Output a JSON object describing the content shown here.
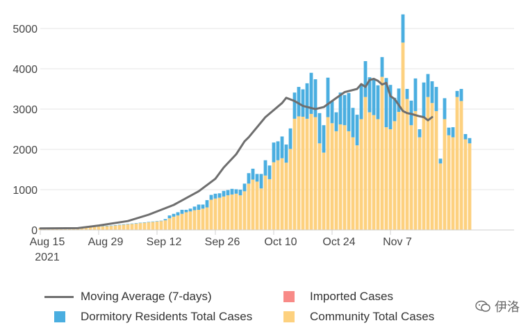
{
  "chart_data": {
    "type": "bar",
    "stacked": true,
    "title": "",
    "xlabel": "",
    "ylabel": "",
    "ylim": [
      0,
      5450
    ],
    "grid": true,
    "y_ticks": [
      "0",
      "1000",
      "2000",
      "3000",
      "4000",
      "5000"
    ],
    "x_ticks": [
      {
        "label": "Aug 15",
        "sublabel": "2021",
        "day": 0
      },
      {
        "label": "Aug 29",
        "day": 14
      },
      {
        "label": "Sep 12",
        "day": 28
      },
      {
        "label": "Sep 26",
        "day": 42
      },
      {
        "label": "Oct 10",
        "day": 56
      },
      {
        "label": "Oct 24",
        "day": 70
      },
      {
        "label": "Nov 7",
        "day": 84
      }
    ],
    "start_date": "2021-08-15",
    "series": [
      {
        "name": "Community Total Cases",
        "color": "#fdd17f",
        "values": [
          45,
          45,
          45,
          45,
          45,
          45,
          45,
          45,
          45,
          45,
          55,
          60,
          70,
          80,
          85,
          90,
          95,
          100,
          110,
          120,
          130,
          140,
          150,
          160,
          170,
          180,
          190,
          200,
          210,
          220,
          240,
          290,
          330,
          360,
          400,
          440,
          460,
          490,
          500,
          530,
          560,
          750,
          780,
          800,
          830,
          860,
          880,
          900,
          860,
          960,
          1150,
          1250,
          1200,
          1030,
          1350,
          1260,
          1680,
          1730,
          1780,
          1670,
          2010,
          2760,
          2820,
          2810,
          2760,
          2880,
          2800,
          2150,
          1920,
          2800,
          2650,
          2450,
          2620,
          2600,
          2450,
          2300,
          2100,
          2750,
          3300,
          2920,
          2850,
          2750,
          3800,
          2550,
          2500,
          2700,
          2930,
          4650,
          3250,
          2600,
          2950,
          2300,
          2800,
          3300,
          3150,
          2950,
          1650,
          2750,
          2350,
          2300,
          3300,
          3200,
          2250,
          2150
        ]
      },
      {
        "name": "Dormitory Residents Total Cases",
        "color": "#4aaee0",
        "values": [
          0,
          0,
          0,
          0,
          0,
          0,
          0,
          0,
          0,
          0,
          0,
          10,
          10,
          10,
          10,
          10,
          10,
          10,
          10,
          10,
          10,
          10,
          10,
          10,
          10,
          10,
          10,
          10,
          10,
          10,
          30,
          70,
          70,
          80,
          100,
          60,
          70,
          90,
          130,
          100,
          180,
          120,
          120,
          110,
          140,
          130,
          140,
          110,
          140,
          190,
          260,
          270,
          190,
          360,
          380,
          340,
          490,
          470,
          540,
          450,
          510,
          650,
          730,
          680,
          880,
          1020,
          940,
          750,
          680,
          980,
          540,
          470,
          790,
          750,
          950,
          730,
          760,
          860,
          890,
          870,
          890,
          840,
          490,
          1220,
          1100,
          580,
          580,
          700,
          250,
          610,
          810,
          200,
          860,
          570,
          540,
          600,
          120,
          520,
          190,
          250,
          150,
          300,
          130,
          130
        ]
      },
      {
        "name": "Imported Cases",
        "color": "#f88a87",
        "values": []
      }
    ],
    "moving_average": {
      "name": "Moving Average (7-days)",
      "color": "#6e6e6e",
      "points": [
        {
          "day": 0,
          "value": 40
        },
        {
          "day": 9,
          "value": 45
        },
        {
          "day": 14,
          "value": 110
        },
        {
          "day": 21,
          "value": 220
        },
        {
          "day": 26,
          "value": 380
        },
        {
          "day": 32,
          "value": 620
        },
        {
          "day": 38,
          "value": 960
        },
        {
          "day": 42,
          "value": 1270
        },
        {
          "day": 44,
          "value": 1550
        },
        {
          "day": 47,
          "value": 1880
        },
        {
          "day": 49,
          "value": 2200
        },
        {
          "day": 50,
          "value": 2300
        },
        {
          "day": 54,
          "value": 2800
        },
        {
          "day": 58,
          "value": 3150
        },
        {
          "day": 59,
          "value": 3280
        },
        {
          "day": 61,
          "value": 3200
        },
        {
          "day": 63,
          "value": 3080
        },
        {
          "day": 66,
          "value": 3000
        },
        {
          "day": 68,
          "value": 3050
        },
        {
          "day": 70,
          "value": 3200
        },
        {
          "day": 73,
          "value": 3420
        },
        {
          "day": 76,
          "value": 3500
        },
        {
          "day": 77,
          "value": 3620
        },
        {
          "day": 78,
          "value": 3550
        },
        {
          "day": 79,
          "value": 3720
        },
        {
          "day": 80,
          "value": 3750
        },
        {
          "day": 81,
          "value": 3700
        },
        {
          "day": 82,
          "value": 3610
        },
        {
          "day": 83,
          "value": 3650
        },
        {
          "day": 84,
          "value": 3320
        },
        {
          "day": 85,
          "value": 3250
        },
        {
          "day": 87,
          "value": 2950
        },
        {
          "day": 88,
          "value": 2900
        },
        {
          "day": 89,
          "value": 2880
        },
        {
          "day": 91,
          "value": 2820
        },
        {
          "day": 92,
          "value": 2800
        },
        {
          "day": 93,
          "value": 2720
        },
        {
          "day": 94,
          "value": 2800
        }
      ]
    },
    "legend": {
      "placement": "bottom",
      "items": [
        {
          "label": "Moving Average (7-days)",
          "kind": "line",
          "color": "#6e6e6e"
        },
        {
          "label": "Imported Cases",
          "kind": "box",
          "color": "#f88a87"
        },
        {
          "label": "Dormitory Residents Total Cases",
          "kind": "box",
          "color": "#4aaee0"
        },
        {
          "label": "Community Total Cases",
          "kind": "box",
          "color": "#fdd17f"
        }
      ]
    }
  },
  "watermark": {
    "text": "伊洛",
    "icon": "wechat-bubble-icon"
  }
}
